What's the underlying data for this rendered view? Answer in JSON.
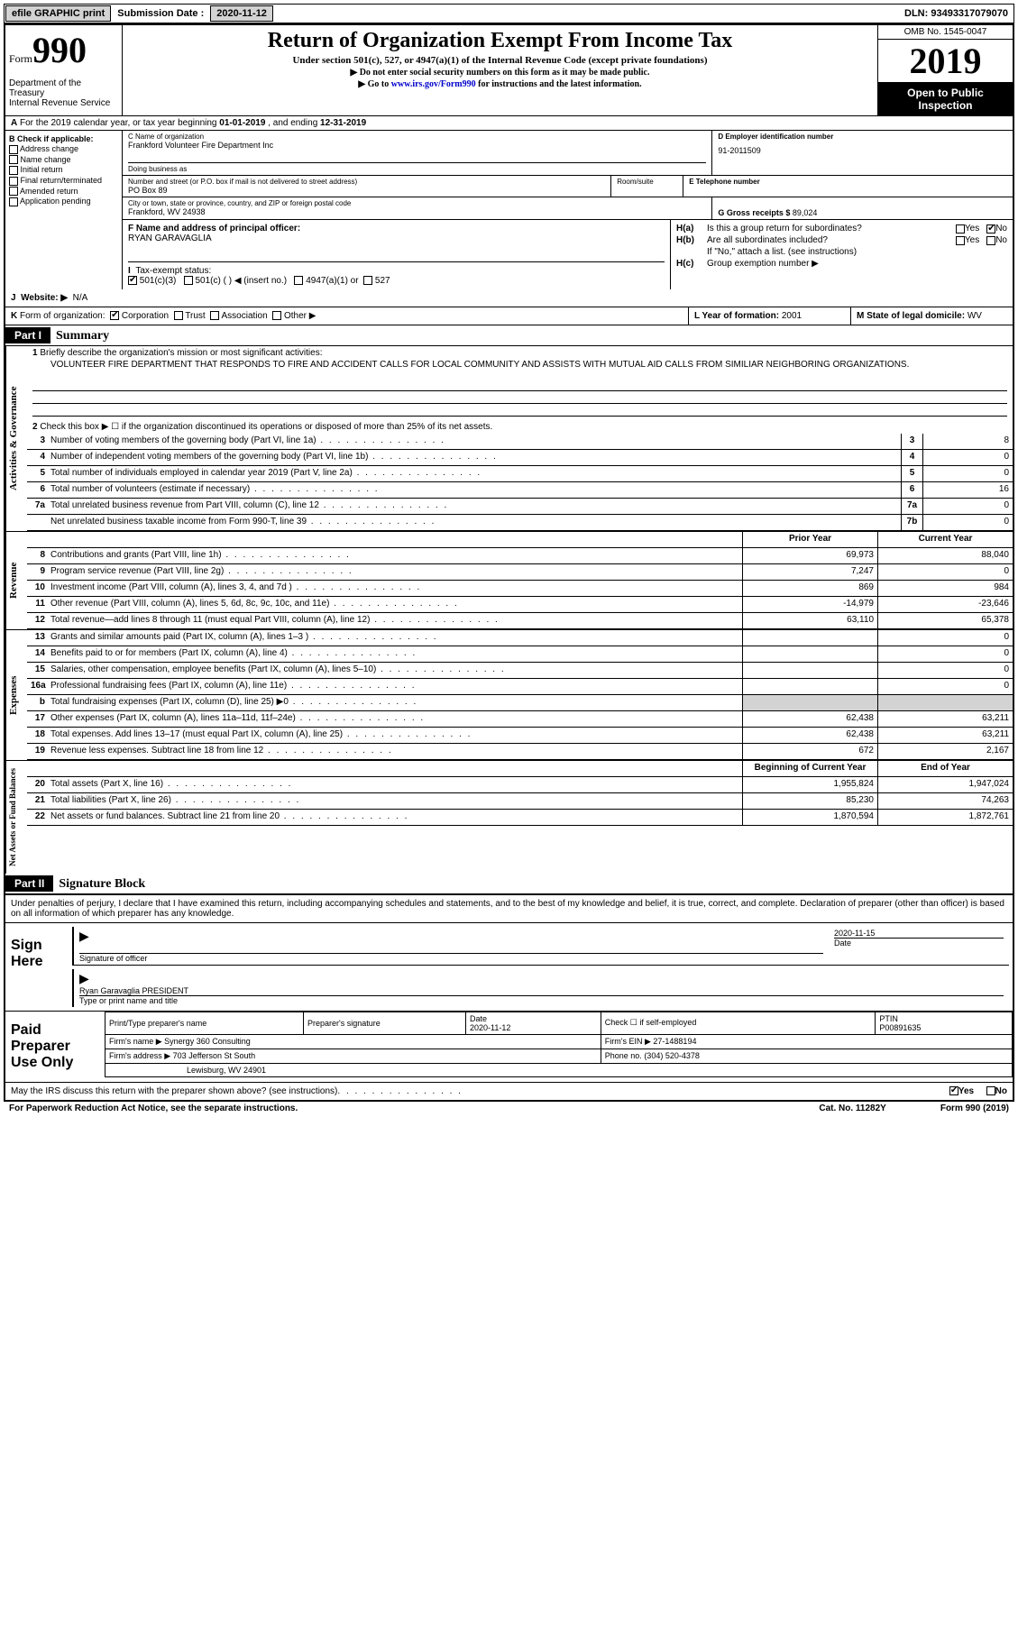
{
  "topbar": {
    "efile": "efile GRAPHIC print",
    "submission_label": "Submission Date :",
    "submission_date": "2020-11-12",
    "dln_label": "DLN:",
    "dln": "93493317079070"
  },
  "header": {
    "form_label": "Form",
    "form_num": "990",
    "dept": "Department of the Treasury\nInternal Revenue Service",
    "title": "Return of Organization Exempt From Income Tax",
    "subtitle": "Under section 501(c), 527, or 4947(a)(1) of the Internal Revenue Code (except private foundations)",
    "hint1": "▶ Do not enter social security numbers on this form as it may be made public.",
    "hint2_pre": "▶ Go to ",
    "hint2_link": "www.irs.gov/Form990",
    "hint2_post": " for instructions and the latest information.",
    "omb": "OMB No. 1545-0047",
    "year": "2019",
    "open_pub": "Open to Public Inspection"
  },
  "row_a": {
    "label": "A",
    "text": "For the 2019 calendar year, or tax year beginning ",
    "begin": "01-01-2019",
    "mid": " , and ending ",
    "end": "12-31-2019"
  },
  "b": {
    "label": "B Check if applicable:",
    "items": [
      "Address change",
      "Name change",
      "Initial return",
      "Final return/terminated",
      "Amended return",
      "Application pending"
    ]
  },
  "c": {
    "name_label": "C Name of organization",
    "name": "Frankford Volunteer Fire Department Inc",
    "dba_label": "Doing business as",
    "street_label": "Number and street (or P.O. box if mail is not delivered to street address)",
    "street": "PO Box 89",
    "room_label": "Room/suite",
    "city_label": "City or town, state or province, country, and ZIP or foreign postal code",
    "city": "Frankford, WV  24938"
  },
  "d": {
    "label": "D Employer identification number",
    "value": "91-2011509"
  },
  "e": {
    "label": "E Telephone number"
  },
  "g": {
    "label": "G Gross receipts $",
    "value": "89,024"
  },
  "f": {
    "label": "F  Name and address of principal officer:",
    "value": "RYAN GARAVAGLIA"
  },
  "h": {
    "a_label": "H(a)",
    "a_text": "Is this a group return for subordinates?",
    "b_label": "H(b)",
    "b_text": "Are all subordinates included?",
    "b_note": "If \"No,\" attach a list. (see instructions)",
    "c_label": "H(c)",
    "c_text": "Group exemption number ▶",
    "yes": "Yes",
    "no": "No"
  },
  "i": {
    "label": "I",
    "text": "Tax-exempt status:",
    "opts": [
      "501(c)(3)",
      "501(c) (  ) ◀ (insert no.)",
      "4947(a)(1) or",
      "527"
    ]
  },
  "j": {
    "label": "J",
    "text": "Website: ▶",
    "value": "N/A"
  },
  "k": {
    "label": "K",
    "text": "Form of organization:",
    "opts": [
      "Corporation",
      "Trust",
      "Association",
      "Other ▶"
    ]
  },
  "l": {
    "label": "L Year of formation:",
    "value": "2001"
  },
  "m": {
    "label": "M State of legal domicile:",
    "value": "WV"
  },
  "part1": {
    "hdr": "Part I",
    "title": "Summary",
    "line1_num": "1",
    "line1": "Briefly describe the organization's mission or most significant activities:",
    "mission": "VOLUNTEER FIRE DEPARTMENT THAT RESPONDS TO FIRE AND ACCIDENT CALLS FOR LOCAL COMMUNITY AND ASSISTS WITH MUTUAL AID CALLS FROM SIMILIAR NEIGHBORING ORGANIZATIONS.",
    "line2_num": "2",
    "line2": "Check this box ▶ ☐ if the organization discontinued its operations or disposed of more than 25% of its net assets.",
    "sections": {
      "gov": "Activities & Governance",
      "rev": "Revenue",
      "exp": "Expenses",
      "net": "Net Assets or Fund Balances"
    },
    "gov_lines": [
      {
        "n": "3",
        "t": "Number of voting members of the governing body (Part VI, line 1a)",
        "box": "3",
        "v": "8"
      },
      {
        "n": "4",
        "t": "Number of independent voting members of the governing body (Part VI, line 1b)",
        "box": "4",
        "v": "0"
      },
      {
        "n": "5",
        "t": "Total number of individuals employed in calendar year 2019 (Part V, line 2a)",
        "box": "5",
        "v": "0"
      },
      {
        "n": "6",
        "t": "Total number of volunteers (estimate if necessary)",
        "box": "6",
        "v": "16"
      },
      {
        "n": "7a",
        "t": "Total unrelated business revenue from Part VIII, column (C), line 12",
        "box": "7a",
        "v": "0"
      },
      {
        "n": "",
        "t": "Net unrelated business taxable income from Form 990-T, line 39",
        "box": "7b",
        "v": "0"
      }
    ],
    "prior_year": "Prior Year",
    "current_year": "Current Year",
    "rev_lines": [
      {
        "n": "8",
        "t": "Contributions and grants (Part VIII, line 1h)",
        "py": "69,973",
        "cy": "88,040"
      },
      {
        "n": "9",
        "t": "Program service revenue (Part VIII, line 2g)",
        "py": "7,247",
        "cy": "0"
      },
      {
        "n": "10",
        "t": "Investment income (Part VIII, column (A), lines 3, 4, and 7d )",
        "py": "869",
        "cy": "984"
      },
      {
        "n": "11",
        "t": "Other revenue (Part VIII, column (A), lines 5, 6d, 8c, 9c, 10c, and 11e)",
        "py": "-14,979",
        "cy": "-23,646"
      },
      {
        "n": "12",
        "t": "Total revenue—add lines 8 through 11 (must equal Part VIII, column (A), line 12)",
        "py": "63,110",
        "cy": "65,378"
      }
    ],
    "exp_lines": [
      {
        "n": "13",
        "t": "Grants and similar amounts paid (Part IX, column (A), lines 1–3 )",
        "py": "",
        "cy": "0"
      },
      {
        "n": "14",
        "t": "Benefits paid to or for members (Part IX, column (A), line 4)",
        "py": "",
        "cy": "0"
      },
      {
        "n": "15",
        "t": "Salaries, other compensation, employee benefits (Part IX, column (A), lines 5–10)",
        "py": "",
        "cy": "0"
      },
      {
        "n": "16a",
        "t": "Professional fundraising fees (Part IX, column (A), line 11e)",
        "py": "",
        "cy": "0"
      },
      {
        "n": "b",
        "t": "Total fundraising expenses (Part IX, column (D), line 25) ▶0",
        "py": "shaded",
        "cy": "shaded"
      },
      {
        "n": "17",
        "t": "Other expenses (Part IX, column (A), lines 11a–11d, 11f–24e)",
        "py": "62,438",
        "cy": "63,211"
      },
      {
        "n": "18",
        "t": "Total expenses. Add lines 13–17 (must equal Part IX, column (A), line 25)",
        "py": "62,438",
        "cy": "63,211"
      },
      {
        "n": "19",
        "t": "Revenue less expenses. Subtract line 18 from line 12",
        "py": "672",
        "cy": "2,167"
      }
    ],
    "boy": "Beginning of Current Year",
    "eoy": "End of Year",
    "net_lines": [
      {
        "n": "20",
        "t": "Total assets (Part X, line 16)",
        "py": "1,955,824",
        "cy": "1,947,024"
      },
      {
        "n": "21",
        "t": "Total liabilities (Part X, line 26)",
        "py": "85,230",
        "cy": "74,263"
      },
      {
        "n": "22",
        "t": "Net assets or fund balances. Subtract line 21 from line 20",
        "py": "1,870,594",
        "cy": "1,872,761"
      }
    ]
  },
  "part2": {
    "hdr": "Part II",
    "title": "Signature Block",
    "decl": "Under penalties of perjury, I declare that I have examined this return, including accompanying schedules and statements, and to the best of my knowledge and belief, it is true, correct, and complete. Declaration of preparer (other than officer) is based on all information of which preparer has any knowledge.",
    "sign_here": "Sign Here",
    "sig_officer": "Signature of officer",
    "sig_date": "2020-11-15",
    "date_label": "Date",
    "officer_name": "Ryan Garavaglia PRESIDENT",
    "type_label": "Type or print name and title",
    "paid_prep": "Paid Preparer Use Only",
    "prep_name_label": "Print/Type preparer's name",
    "prep_sig_label": "Preparer's signature",
    "prep_date_label": "Date",
    "prep_date": "2020-11-12",
    "check_self": "Check ☐ if self-employed",
    "ptin_label": "PTIN",
    "ptin": "P00891635",
    "firm_name_label": "Firm's name    ▶",
    "firm_name": "Synergy 360 Consulting",
    "firm_ein_label": "Firm's EIN ▶",
    "firm_ein": "27-1488194",
    "firm_addr_label": "Firm's address ▶",
    "firm_addr1": "703 Jefferson St South",
    "firm_addr2": "Lewisburg, WV  24901",
    "phone_label": "Phone no.",
    "phone": "(304) 520-4378",
    "discuss": "May the IRS discuss this return with the preparer shown above? (see instructions)",
    "yes": "Yes",
    "no": "No"
  },
  "footer": {
    "left": "For Paperwork Reduction Act Notice, see the separate instructions.",
    "mid": "Cat. No. 11282Y",
    "right": "Form 990 (2019)"
  }
}
